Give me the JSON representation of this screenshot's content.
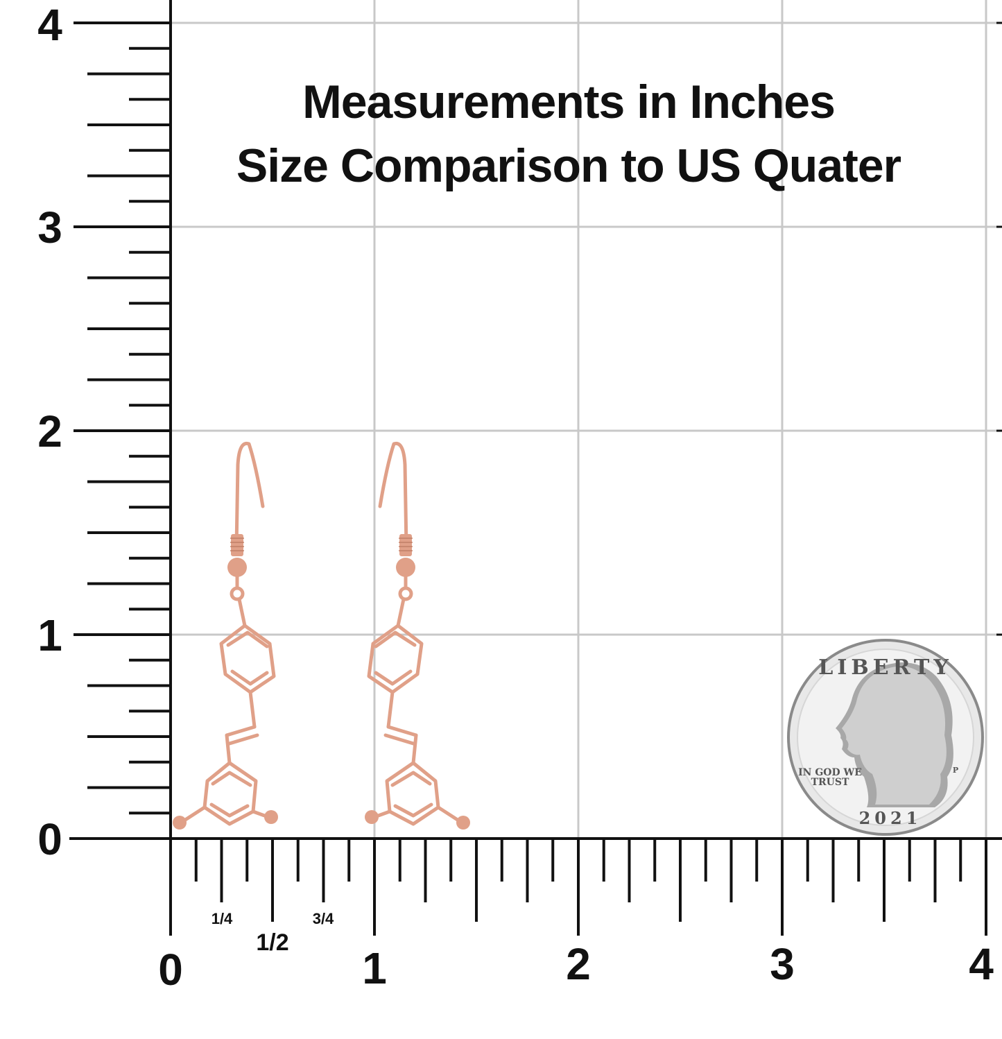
{
  "title": {
    "line1": "Measurements in Inches",
    "line2": "Size Comparison to US Quater"
  },
  "y_axis": {
    "labels": [
      "0",
      "1",
      "2",
      "3",
      "4"
    ]
  },
  "x_axis": {
    "labels": [
      "0",
      "1",
      "2",
      "3",
      "4"
    ],
    "fraction_labels": [
      "1/4",
      "1/2",
      "3/4"
    ]
  },
  "coin": {
    "top_text": "LIBERTY",
    "motto_line1": "IN GOD WE",
    "motto_line2": "TRUST",
    "year": "2021",
    "mint_mark": "P"
  },
  "colors": {
    "grid": "#c8c8c8",
    "ruler": "#111111",
    "earring": "#e0a088",
    "coin": "#c9c9c9"
  },
  "icons": [
    "earring-icon",
    "quarter-coin-icon"
  ]
}
